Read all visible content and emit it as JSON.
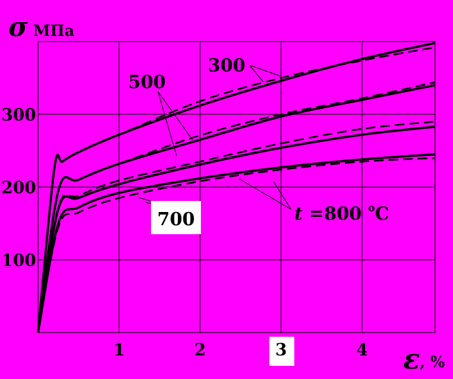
{
  "chart_data": {
    "type": "line",
    "ylabel_symbol": "σ",
    "ylabel_unit": "МПа",
    "xlabel_symbol": "ε",
    "xlabel_unit": ", %",
    "xlim": [
      0,
      4.9
    ],
    "ylim": [
      0,
      400
    ],
    "x_ticks": [
      "1",
      "2",
      "3",
      "4"
    ],
    "x_tick_values": [
      1,
      2,
      3,
      4
    ],
    "y_ticks": [
      "100",
      "200",
      "300"
    ],
    "y_tick_values": [
      100,
      200,
      300
    ],
    "grid": true,
    "curve_labels": {
      "t300": "300",
      "t500": "500",
      "t700": "700",
      "t800_prefix": "t",
      "t800_main": " =800 ",
      "t800_sup": "o",
      "t800_unit": "C"
    },
    "series": [
      {
        "style": "solid",
        "x": [
          0,
          0.2,
          0.3,
          0.5,
          1.0,
          2.0,
          3.0,
          4.0,
          4.9
        ],
        "y": [
          0,
          225,
          235,
          248,
          272,
          312,
          346,
          376,
          398
        ]
      },
      {
        "style": "dashed",
        "x": [
          0,
          0.2,
          0.3,
          0.5,
          1.0,
          2.0,
          3.0,
          4.0,
          4.9
        ],
        "y": [
          0,
          225,
          235,
          248,
          272,
          318,
          350,
          374,
          392
        ]
      },
      {
        "style": "solid",
        "x": [
          0,
          0.25,
          0.5,
          1.0,
          2.0,
          3.0,
          4.0,
          4.9
        ],
        "y": [
          0,
          195,
          210,
          232,
          265,
          297,
          320,
          340
        ]
      },
      {
        "style": "dashed",
        "x": [
          0,
          0.25,
          0.5,
          1.0,
          2.0,
          3.0,
          4.0,
          4.9
        ],
        "y": [
          0,
          195,
          210,
          232,
          271,
          300,
          322,
          344
        ]
      },
      {
        "style": "solid",
        "x": [
          0,
          0.25,
          0.5,
          1.0,
          2.0,
          3.0,
          4.0,
          4.9
        ],
        "y": [
          0,
          170,
          185,
          204,
          231,
          254,
          272,
          283
        ]
      },
      {
        "style": "dashed",
        "x": [
          0,
          0.25,
          0.5,
          1.0,
          2.0,
          3.0,
          4.0,
          4.9
        ],
        "y": [
          0,
          172,
          188,
          209,
          235,
          260,
          280,
          290
        ]
      },
      {
        "style": "solid",
        "x": [
          0,
          0.25,
          0.5,
          1.0,
          2.0,
          3.0,
          4.0,
          4.9
        ],
        "y": [
          0,
          150,
          172,
          192,
          212,
          227,
          238,
          245
        ]
      },
      {
        "style": "dashed",
        "x": [
          0,
          0.25,
          0.5,
          1.0,
          2.0,
          3.0,
          4.0,
          4.9
        ],
        "y": [
          0,
          145,
          165,
          185,
          208,
          224,
          235,
          240
        ]
      }
    ]
  },
  "colors": {
    "background": "#ff00ff",
    "line": "#000000",
    "label_box": "#ffffff"
  }
}
